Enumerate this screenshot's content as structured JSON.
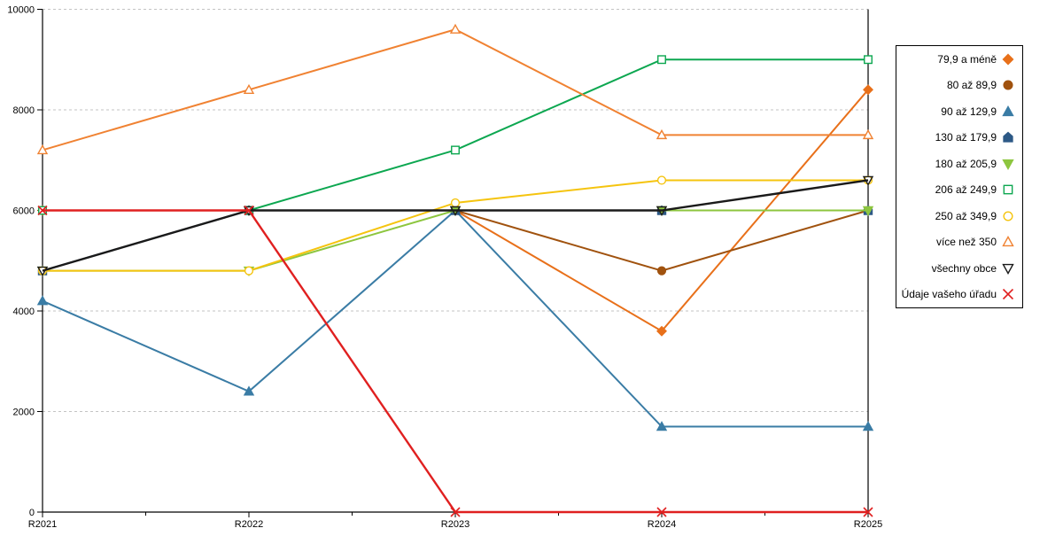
{
  "chart_data": {
    "type": "line",
    "title": "",
    "xlabel": "",
    "ylabel": "",
    "categories": [
      "R2021",
      "R2022",
      "R2023",
      "R2024",
      "R2025"
    ],
    "ylim": [
      0,
      10000
    ],
    "yticks": [
      0,
      2000,
      4000,
      6000,
      8000,
      10000
    ],
    "grid": "horizontal-dashed",
    "legend_position": "right-outside-box",
    "series": [
      {
        "name": "79,9 a méně",
        "color": "#e8701a",
        "marker": "diamond",
        "fillmode": "solid",
        "lw": 2,
        "values": [
          6000,
          6000,
          6000,
          3600,
          8400
        ]
      },
      {
        "name": "80 až 89,9",
        "color": "#a0520e",
        "marker": "circle",
        "fillmode": "solid",
        "lw": 2,
        "values": [
          6000,
          6000,
          6000,
          4800,
          6000
        ]
      },
      {
        "name": "90 až 129,9",
        "color": "#3a7ca5",
        "marker": "triangle-up",
        "fillmode": "solid",
        "lw": 2,
        "values": [
          4200,
          2400,
          6000,
          1700,
          1700
        ]
      },
      {
        "name": "130 až 179,9",
        "color": "#2d5986",
        "marker": "pentagon",
        "fillmode": "solid",
        "lw": 2,
        "values": [
          4800,
          6000,
          6000,
          6000,
          6000
        ]
      },
      {
        "name": "180 až 205,9",
        "color": "#8dc63f",
        "marker": "triangle-down",
        "fillmode": "solid",
        "lw": 2,
        "values": [
          4800,
          4800,
          6000,
          6000,
          6000
        ]
      },
      {
        "name": "206 až 249,9",
        "color": "#0ca750",
        "marker": "square",
        "fillmode": "white",
        "lw": 2,
        "values": [
          6000,
          6000,
          7200,
          9000,
          9000
        ]
      },
      {
        "name": "250 až 349,9",
        "color": "#f5c40f",
        "marker": "circle",
        "fillmode": "white",
        "lw": 2,
        "values": [
          4800,
          4800,
          6150,
          6600,
          6600
        ]
      },
      {
        "name": "více než 350",
        "color": "#f08232",
        "marker": "triangle-up",
        "fillmode": "white",
        "lw": 2,
        "values": [
          7200,
          8400,
          9600,
          7500,
          7500
        ]
      },
      {
        "name": "všechny obce",
        "color": "#1a1a1a",
        "marker": "triangle-down",
        "fillmode": "none",
        "lw": 2.4,
        "values": [
          4800,
          6000,
          6000,
          6000,
          6600
        ]
      },
      {
        "name": "Údaje vašeho úřadu",
        "color": "#e02020",
        "marker": "x",
        "fillmode": "none",
        "lw": 2.4,
        "values": [
          6000,
          6000,
          0,
          0,
          0
        ]
      }
    ]
  }
}
